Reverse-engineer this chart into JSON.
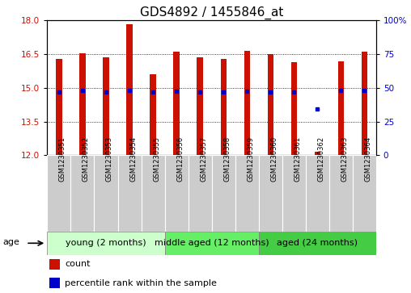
{
  "title": "GDS4892 / 1455846_at",
  "samples": [
    "GSM1230351",
    "GSM1230352",
    "GSM1230353",
    "GSM1230354",
    "GSM1230355",
    "GSM1230356",
    "GSM1230357",
    "GSM1230358",
    "GSM1230359",
    "GSM1230360",
    "GSM1230361",
    "GSM1230362",
    "GSM1230363",
    "GSM1230364"
  ],
  "bar_tops": [
    16.3,
    16.55,
    16.35,
    17.85,
    15.6,
    16.6,
    16.35,
    16.3,
    16.65,
    16.5,
    16.15,
    12.15,
    16.2,
    16.6
  ],
  "bar_bottoms": [
    12.0,
    12.0,
    12.0,
    12.0,
    12.0,
    12.0,
    12.0,
    12.0,
    12.0,
    12.0,
    12.0,
    12.0,
    12.0,
    12.0
  ],
  "percentile_values": [
    14.82,
    14.9,
    14.82,
    14.88,
    14.82,
    14.85,
    14.82,
    14.82,
    14.85,
    14.82,
    14.82,
    14.05,
    14.88,
    14.88
  ],
  "ylim_left": [
    12,
    18
  ],
  "ylim_right": [
    0,
    100
  ],
  "yticks_left": [
    12,
    13.5,
    15,
    16.5,
    18
  ],
  "yticks_right": [
    0,
    25,
    50,
    75,
    100
  ],
  "bar_color": "#cc1100",
  "percentile_color": "#0000cc",
  "group_labels": [
    "young (2 months)",
    "middle aged (12 months)",
    "aged (24 months)"
  ],
  "group_starts": [
    0,
    5,
    9
  ],
  "group_ends": [
    5,
    9,
    14
  ],
  "group_colors": [
    "#ccffcc",
    "#66ee66",
    "#44cc44"
  ],
  "sample_box_color": "#cccccc",
  "age_label": "age",
  "legend_count_label": "count",
  "legend_pct_label": "percentile rank within the sample",
  "bar_width": 0.25,
  "title_fontsize": 11,
  "tick_fontsize": 7.5,
  "sample_fontsize": 6,
  "group_fontsize": 8,
  "legend_fontsize": 8,
  "background_color": "#ffffff"
}
